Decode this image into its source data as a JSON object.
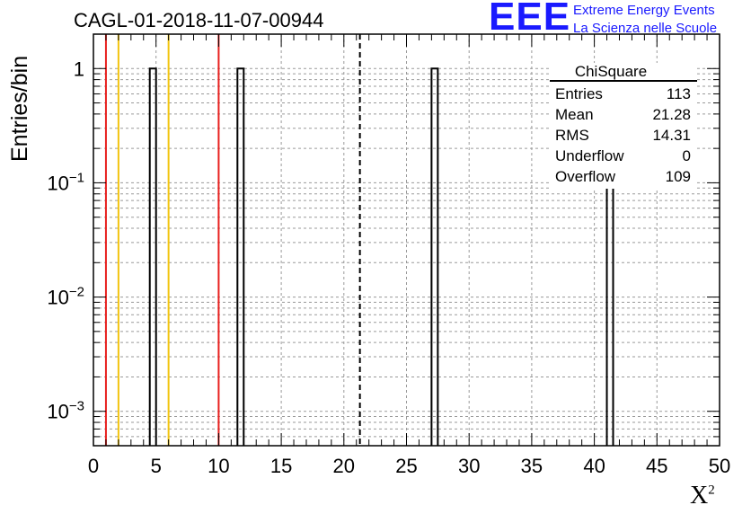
{
  "title": "CAGL-01-2018-11-07-00944",
  "brand": {
    "logo": "EEE",
    "line1": "Extreme Energy Events",
    "line2": "La Scienza nelle Scuole",
    "color": "#1a1aff"
  },
  "axes": {
    "ylabel": "Entries/bin",
    "xlabel": "X",
    "xlabel_sup": "2"
  },
  "stats_box": {
    "title": "ChiSquare",
    "rows": [
      {
        "label": "Entries",
        "value": "113"
      },
      {
        "label": "Mean",
        "value": "21.28"
      },
      {
        "label": "RMS",
        "value": "14.31"
      },
      {
        "label": "Underflow",
        "value": "0"
      },
      {
        "label": "Overflow",
        "value": "109"
      }
    ]
  },
  "chart_data": {
    "type": "bar",
    "title": "CAGL-01-2018-11-07-00944",
    "xlabel": "X²",
    "ylabel": "Entries/bin",
    "xlim": [
      0,
      50
    ],
    "ylim": [
      0.0005,
      2
    ],
    "yscale": "log",
    "grid": true,
    "bin_width": 0.5,
    "x_ticks": [
      0,
      5,
      10,
      15,
      20,
      25,
      30,
      35,
      40,
      45,
      50
    ],
    "y_tick_labels": [
      {
        "value": 1,
        "base": "1",
        "exp": ""
      },
      {
        "value": 0.1,
        "base": "10",
        "exp": "−1"
      },
      {
        "value": 0.01,
        "base": "10",
        "exp": "−2"
      },
      {
        "value": 0.001,
        "base": "10",
        "exp": "−3"
      }
    ],
    "bins": [
      {
        "x_low": 4.5,
        "x_high": 5.0,
        "count": 1
      },
      {
        "x_low": 11.5,
        "x_high": 12.0,
        "count": 1
      },
      {
        "x_low": 27.0,
        "x_high": 27.5,
        "count": 1
      },
      {
        "x_low": 41.0,
        "x_high": 41.5,
        "count": 1
      }
    ],
    "reference_lines": [
      {
        "x": 1,
        "color": "#e8201e",
        "style": "solid"
      },
      {
        "x": 2,
        "color": "#f2c40f",
        "style": "solid"
      },
      {
        "x": 6,
        "color": "#f2c40f",
        "style": "solid"
      },
      {
        "x": 10,
        "color": "#e8201e",
        "style": "solid"
      },
      {
        "x": 21.28,
        "color": "#000000",
        "style": "dashed"
      }
    ]
  }
}
